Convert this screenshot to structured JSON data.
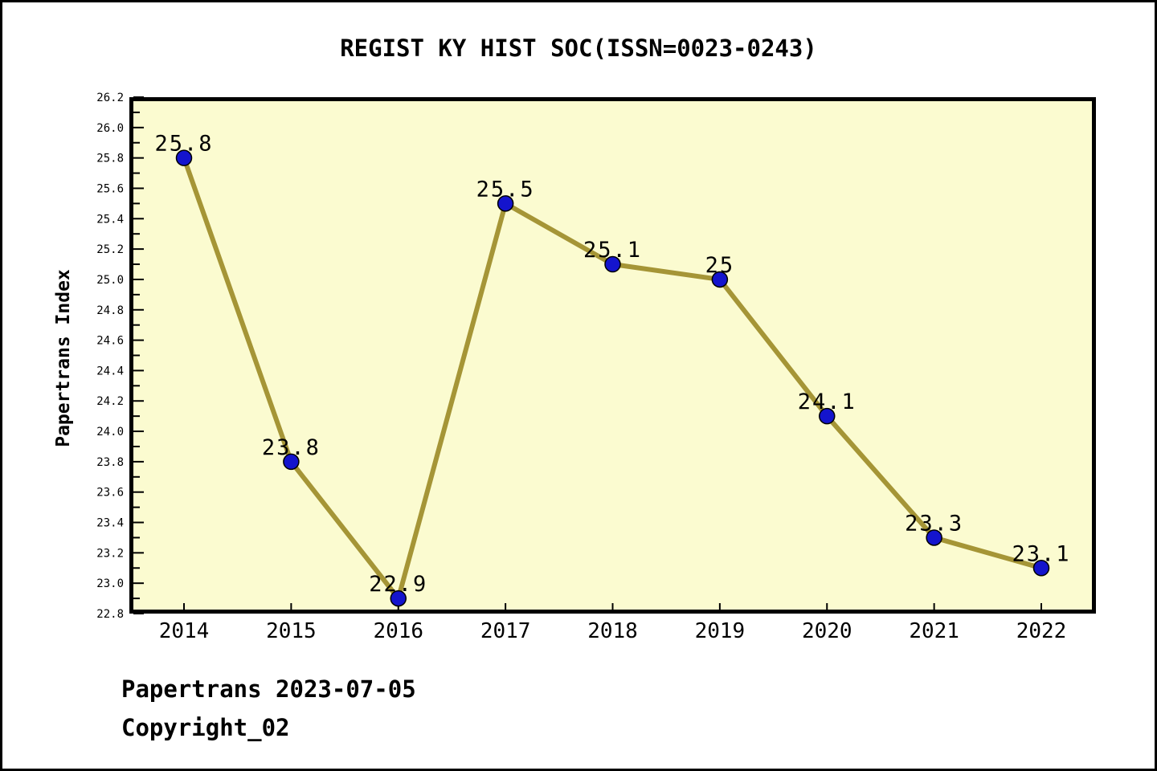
{
  "title": "REGIST KY HIST SOC(ISSN=0023-0243)",
  "footer": {
    "line1": "Papertrans 2023-07-05",
    "line2": "Copyright_02"
  },
  "chart_data": {
    "type": "line",
    "title": "REGIST KY HIST SOC(ISSN=0023-0243)",
    "xlabel": "",
    "ylabel": "Papertrans Index",
    "x": [
      2014,
      2015,
      2016,
      2017,
      2018,
      2019,
      2020,
      2021,
      2022
    ],
    "series": [
      {
        "name": "Papertrans Index",
        "values": [
          25.8,
          23.8,
          22.9,
          25.5,
          25.1,
          25.0,
          24.1,
          23.3,
          23.1
        ],
        "point_labels": [
          "25.8",
          "23.8",
          "22.9",
          "25.5",
          "25.1",
          "25",
          "24.1",
          "23.3",
          "23.1"
        ]
      }
    ],
    "ylim": [
      22.8,
      26.2
    ],
    "ytick_major_step": 0.2,
    "ytick_minor_step": 0.1,
    "grid": false,
    "legend": "none",
    "colors": {
      "line": "#A59536",
      "marker_fill": "#1414CD",
      "marker_edge": "#000000",
      "plot_background": "#FBFBD0",
      "figure_background": "#FFFFFF",
      "axis": "#000000",
      "text": "#000000"
    }
  }
}
